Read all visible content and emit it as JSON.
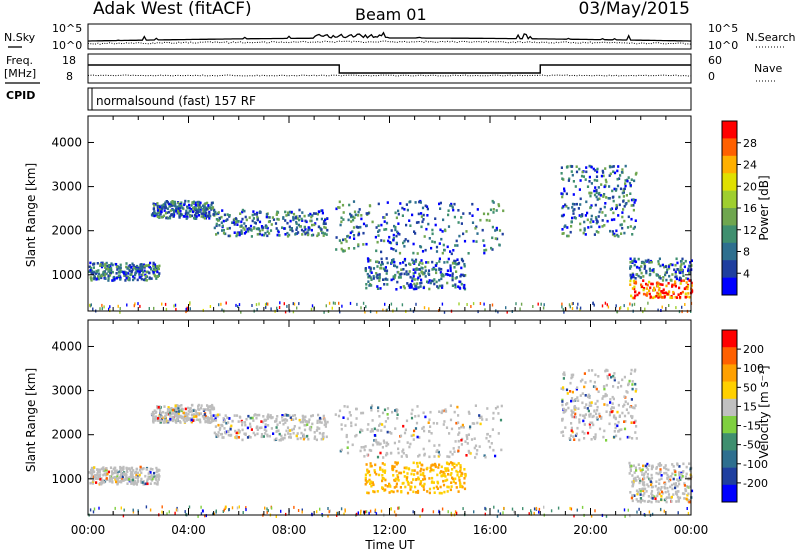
{
  "header": {
    "site": "Adak West (fitACF)",
    "beam": "Beam 01",
    "date": "03/May/2015"
  },
  "strip": {
    "nsky_label": "N.Sky",
    "nsearch_label": "N.Search",
    "freq_label_1": "Freq.",
    "freq_label_2": "[MHz]",
    "nave_label": "Nave",
    "cpid_label": "CPID",
    "cpid_value": "normalsound (fast) 157 RF",
    "noise_ticks_left": [
      "10^5",
      "10^0"
    ],
    "noise_ticks_right": [
      "10^5",
      "10^0"
    ],
    "freq_ticks": [
      "18",
      "8"
    ],
    "nave_ticks": [
      "60",
      "0"
    ]
  },
  "chart_data": [
    {
      "type": "heatmap",
      "name": "power",
      "ylabel": "Slant Range [km]",
      "xlabel": "",
      "ylim": [
        180,
        4600
      ],
      "yticks": [
        "4000",
        "3000",
        "2000",
        "1000"
      ],
      "colorbar": {
        "label": "Power [dB]",
        "ticks": [
          "28",
          "24",
          "20",
          "16",
          "12",
          "8",
          "4"
        ],
        "colors": [
          "#0000ff",
          "#1f3f9f",
          "#2e6f8f",
          "#3f8f6f",
          "#6fa64f",
          "#9fcf2f",
          "#e0e000",
          "#ffb000",
          "#ff6000",
          "#ff0000"
        ]
      },
      "echo_bands": [
        {
          "t": [
            0.0,
            2.8
          ],
          "r": [
            900,
            1300
          ]
        },
        {
          "t": [
            2.5,
            5.0
          ],
          "r": [
            2300,
            2700
          ]
        },
        {
          "t": [
            5.0,
            9.5
          ],
          "r": [
            1900,
            2500
          ]
        },
        {
          "t": [
            9.8,
            16.5
          ],
          "r": [
            1500,
            2700
          ]
        },
        {
          "t": [
            11.0,
            15.0
          ],
          "r": [
            700,
            1400
          ]
        },
        {
          "t": [
            18.8,
            21.8
          ],
          "r": [
            1900,
            3500
          ]
        },
        {
          "t": [
            21.5,
            24.0
          ],
          "r": [
            500,
            1400
          ]
        }
      ]
    },
    {
      "type": "heatmap",
      "name": "velocity",
      "ylabel": "Slant Range [km]",
      "xlabel": "Time UT",
      "ylim": [
        180,
        4600
      ],
      "yticks": [
        "4000",
        "3000",
        "2000",
        "1000"
      ],
      "xticks": [
        "00:00",
        "04:00",
        "08:00",
        "12:00",
        "16:00",
        "20:00",
        "00:00"
      ],
      "colorbar": {
        "label": "Velocity [m s⁻¹]",
        "ticks": [
          "200",
          "100",
          "50",
          "15",
          "-15",
          "-50",
          "-100",
          "-200"
        ],
        "colors": [
          "#0000ff",
          "#1f3f9f",
          "#2e6f8f",
          "#3f8f6f",
          "#7fd040",
          "#c0c0c0",
          "#ffd000",
          "#ffa000",
          "#ff6000",
          "#ff0000"
        ]
      }
    }
  ],
  "colors": {
    "ground_scatter": "#bdbdbd",
    "frame": "#000000"
  }
}
